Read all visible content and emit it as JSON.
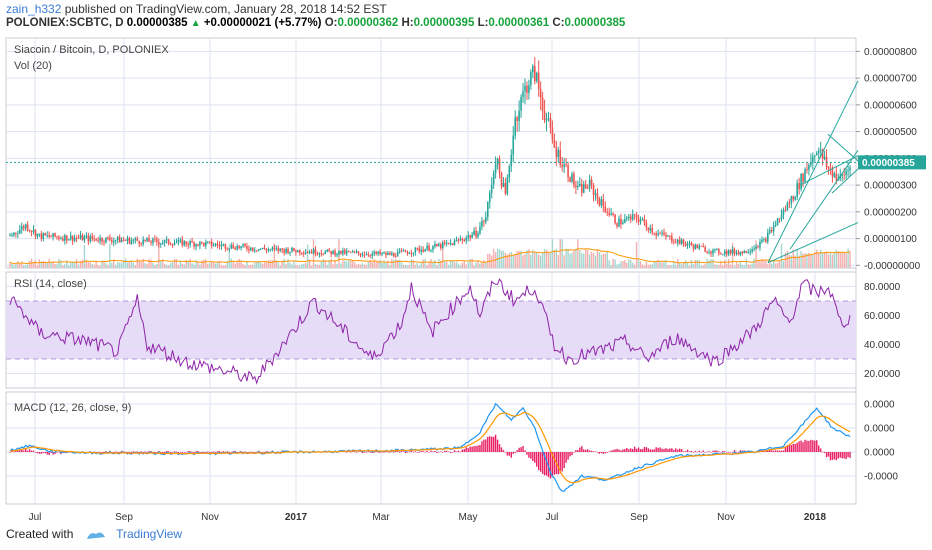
{
  "header": {
    "user": "zain_h332",
    "published": "published on TradingView.com, January 28, 2018 14:52 EST",
    "symbol": "POLONIEX:SCBTC, D",
    "last": "0.00000385",
    "change": "+0.00000021 (+5.77%)",
    "o_label": "O:",
    "o_value": "0.00000362",
    "h_label": "H:",
    "h_value": "0.00000395",
    "l_label": "L:",
    "l_value": "0.00000361",
    "c_label": "C:",
    "c_value": "0.00000385"
  },
  "footer": {
    "created_with": "Created with",
    "brand": "TradingView"
  },
  "colors": {
    "bull": "#26a69a",
    "bear": "#ef5350",
    "rsi": "#8e24aa",
    "macd": "#2196f3",
    "signal": "#ff9800",
    "hist": "#e91e63",
    "channel": "#26a69a",
    "grid": "#dfe3f0"
  },
  "chart_data": [
    {
      "type": "candlestick",
      "title": "Siacoin / Bitcoin, D, POLONIEX",
      "indicator_label": "Vol (20)",
      "x_ticks": [
        "Jul",
        "Sep",
        "Nov",
        "2017",
        "Mar",
        "May",
        "Jul",
        "Sep",
        "Nov",
        "2018"
      ],
      "y_ticks": [
        "0.00000800",
        "0.00000700",
        "0.00000600",
        "0.00000500",
        "0.00000400",
        "0.00000300",
        "0.00000200",
        "0.00000100",
        "-0.00000000"
      ],
      "ylim": [
        -1e-07,
        8.5e-06
      ],
      "last_price_tag": "0.00000385",
      "last_price": 3.85e-06,
      "close_anchors": [
        [
          0,
          1.1e-06
        ],
        [
          8,
          1.5e-06
        ],
        [
          15,
          1.1e-06
        ],
        [
          40,
          1e-06
        ],
        [
          70,
          9e-07
        ],
        [
          100,
          8e-07
        ],
        [
          130,
          6e-07
        ],
        [
          160,
          5e-07
        ],
        [
          195,
          4e-07
        ],
        [
          210,
          6e-07
        ],
        [
          225,
          8e-07
        ],
        [
          238,
          1.2e-06
        ],
        [
          243,
          1.8e-06
        ],
        [
          248,
          4e-06
        ],
        [
          253,
          2.6e-06
        ],
        [
          258,
          5.5e-06
        ],
        [
          264,
          6.8e-06
        ],
        [
          268,
          7.2e-06
        ],
        [
          272,
          6e-06
        ],
        [
          278,
          4.4e-06
        ],
        [
          285,
          3.5e-06
        ],
        [
          290,
          2.8e-06
        ],
        [
          296,
          3e-06
        ],
        [
          302,
          2.3e-06
        ],
        [
          310,
          1.6e-06
        ],
        [
          320,
          1.8e-06
        ],
        [
          330,
          1.2e-06
        ],
        [
          345,
          8e-07
        ],
        [
          360,
          5e-07
        ],
        [
          375,
          5e-07
        ],
        [
          385,
          9e-07
        ],
        [
          395,
          2e-06
        ],
        [
          400,
          2.6e-06
        ],
        [
          406,
          3.5e-06
        ],
        [
          412,
          4.4e-06
        ],
        [
          418,
          3.6e-06
        ],
        [
          424,
          3.2e-06
        ],
        [
          430,
          3.8e-06
        ]
      ],
      "volume_note": "volume bars with orange 20-day moving average"
    },
    {
      "type": "line",
      "title": "RSI (14, close)",
      "y_ticks": [
        "80.0000",
        "60.0000",
        "40.0000",
        "20.0000"
      ],
      "ylim": [
        10,
        90
      ],
      "band": [
        30,
        70
      ],
      "anchors": [
        [
          0,
          72
        ],
        [
          8,
          60
        ],
        [
          15,
          48
        ],
        [
          40,
          42
        ],
        [
          55,
          35
        ],
        [
          65,
          70
        ],
        [
          70,
          40
        ],
        [
          90,
          28
        ],
        [
          115,
          20
        ],
        [
          125,
          15
        ],
        [
          145,
          50
        ],
        [
          155,
          70
        ],
        [
          170,
          50
        ],
        [
          185,
          30
        ],
        [
          200,
          55
        ],
        [
          205,
          80
        ],
        [
          215,
          48
        ],
        [
          235,
          80
        ],
        [
          240,
          60
        ],
        [
          248,
          85
        ],
        [
          258,
          70
        ],
        [
          268,
          80
        ],
        [
          278,
          40
        ],
        [
          285,
          30
        ],
        [
          300,
          35
        ],
        [
          315,
          42
        ],
        [
          325,
          30
        ],
        [
          340,
          45
        ],
        [
          360,
          28
        ],
        [
          380,
          50
        ],
        [
          390,
          70
        ],
        [
          398,
          55
        ],
        [
          405,
          82
        ],
        [
          412,
          75
        ],
        [
          418,
          80
        ],
        [
          424,
          55
        ],
        [
          430,
          58
        ]
      ]
    },
    {
      "type": "line",
      "title": "MACD (12, 26, close, 9)",
      "y_ticks": [
        "0.0000",
        "0.0000",
        "0.0000",
        "-0.0000"
      ],
      "series_anchors": [
        [
          0,
          0.02
        ],
        [
          10,
          0.08
        ],
        [
          20,
          0.01
        ],
        [
          40,
          -0.01
        ],
        [
          100,
          -0.02
        ],
        [
          150,
          0.0
        ],
        [
          200,
          0.02
        ],
        [
          230,
          0.05
        ],
        [
          240,
          0.25
        ],
        [
          248,
          0.6
        ],
        [
          256,
          0.4
        ],
        [
          262,
          0.55
        ],
        [
          268,
          0.3
        ],
        [
          276,
          -0.25
        ],
        [
          282,
          -0.5
        ],
        [
          292,
          -0.3
        ],
        [
          305,
          -0.35
        ],
        [
          320,
          -0.2
        ],
        [
          340,
          -0.05
        ],
        [
          360,
          -0.03
        ],
        [
          380,
          0.0
        ],
        [
          395,
          0.08
        ],
        [
          405,
          0.35
        ],
        [
          412,
          0.55
        ],
        [
          420,
          0.3
        ],
        [
          430,
          0.18
        ]
      ],
      "ylim": [
        -0.65,
        0.75
      ]
    }
  ]
}
